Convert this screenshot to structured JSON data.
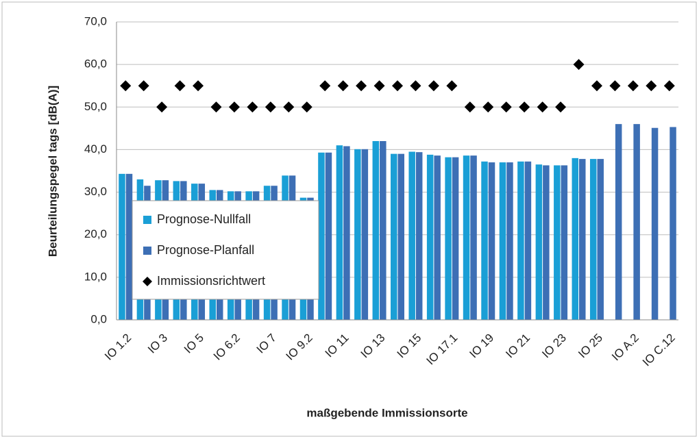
{
  "chart_data": {
    "type": "bar",
    "y_label": "Beurteilungspegel tags [dB(A)]",
    "x_label": "maßgebende Immissionsorte",
    "categories": [
      "IO 1.2",
      null,
      "IO 3",
      null,
      "IO 5",
      null,
      "IO 6.2",
      null,
      "IO 7",
      null,
      "IO 9.2",
      null,
      "IO 11",
      null,
      "IO 13",
      null,
      "IO 15",
      null,
      "IO 17.1",
      null,
      "IO 19",
      null,
      "IO 21",
      null,
      "IO 23",
      null,
      "IO 25",
      null,
      "IO A.2",
      null,
      "IO C.12"
    ],
    "series": [
      {
        "name": "Prognose-Nullfall",
        "color": "#1a9fd6",
        "values": [
          34.3,
          33.0,
          32.8,
          32.6,
          32.0,
          30.5,
          30.2,
          30.2,
          31.5,
          33.9,
          28.7,
          39.3,
          41.0,
          40.1,
          42.0,
          39.0,
          39.5,
          38.8,
          38.2,
          38.6,
          37.2,
          37.0,
          37.2,
          36.5,
          36.3,
          38.0,
          37.8,
          null,
          null,
          null,
          null
        ]
      },
      {
        "name": "Prognose-Planfall",
        "color": "#3d6fb5",
        "values": [
          34.3,
          31.5,
          32.8,
          32.6,
          32.0,
          30.5,
          30.2,
          30.2,
          31.5,
          33.9,
          28.7,
          39.3,
          40.8,
          40.1,
          42.0,
          39.0,
          39.4,
          38.6,
          38.2,
          38.6,
          37.0,
          37.0,
          37.2,
          36.3,
          36.3,
          37.8,
          37.8,
          46.0,
          46.0,
          45.1,
          45.3
        ]
      },
      {
        "name": "Immissionsrichtwert",
        "color": "#000000",
        "marker": "diamond",
        "values": [
          55,
          55,
          50,
          55,
          55,
          50,
          50,
          50,
          50,
          50,
          50,
          55,
          55,
          55,
          55,
          55,
          55,
          55,
          55,
          50,
          50,
          50,
          50,
          50,
          50,
          60,
          55,
          55,
          55,
          55,
          55
        ]
      }
    ],
    "ylim": [
      0,
      70
    ],
    "yticks": [
      {
        "value": 0,
        "label": "0,0"
      },
      {
        "value": 10,
        "label": "10,0"
      },
      {
        "value": 20,
        "label": "20,0"
      },
      {
        "value": 30,
        "label": "30,0"
      },
      {
        "value": 40,
        "label": "40,0"
      },
      {
        "value": 50,
        "label": "50,0"
      },
      {
        "value": 60,
        "label": "60,0"
      },
      {
        "value": 70,
        "label": "70,0"
      }
    ],
    "grid": true,
    "legend": "lower-left"
  }
}
